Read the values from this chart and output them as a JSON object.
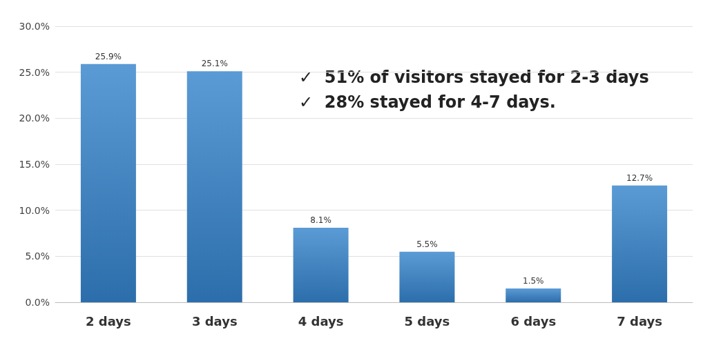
{
  "chart_data": {
    "type": "bar",
    "categories": [
      "2 days",
      "3 days",
      "4 days",
      "5 days",
      "6 days",
      "7 days"
    ],
    "values": [
      25.9,
      25.1,
      8.1,
      5.5,
      1.5,
      12.7
    ],
    "value_labels": [
      "25.9%",
      "25.1%",
      "8.1%",
      "5.5%",
      "1.5%",
      "12.7%"
    ],
    "color": "#5b9bd5",
    "ylim": [
      0,
      30
    ],
    "yticks": [
      {
        "value": 0,
        "label": "0.0%"
      },
      {
        "value": 5,
        "label": "5.0%"
      },
      {
        "value": 10,
        "label": "10.0%"
      },
      {
        "value": 15,
        "label": "15.0%"
      },
      {
        "value": 20,
        "label": "20.0%"
      },
      {
        "value": 25,
        "label": "25.0%"
      },
      {
        "value": 30,
        "label": "30.0%"
      }
    ],
    "grid": "y",
    "annotations": [
      "✓  51% of visitors stayed for 2-3 days",
      "✓  28% stayed for 4-7 days."
    ]
  }
}
